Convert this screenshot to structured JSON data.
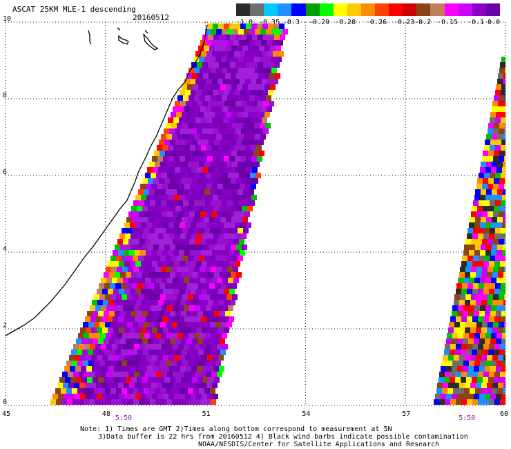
{
  "header": {
    "title": "ASCAT 25KM MLE-1 descending",
    "date": "20160512"
  },
  "colorbar": {
    "labels": [
      "-1.0",
      "-0.35",
      "-0.3",
      "-0.29",
      "-0.28",
      "-0.26",
      "-0.23",
      "-0.2",
      "-0.15",
      "-0.1",
      "0.0"
    ],
    "colors": [
      "#2b2b2b",
      "#6e6e6e",
      "#00c8ff",
      "#1e90ff",
      "#0000ff",
      "#00a000",
      "#00ff00",
      "#ffff00",
      "#ffc800",
      "#ff8c00",
      "#ff4000",
      "#ff0000",
      "#d00000",
      "#8b4513",
      "#c08060",
      "#ff00ff",
      "#cc00ff",
      "#8a00c8",
      "#6a00a8"
    ]
  },
  "chart_data": {
    "type": "heatmap",
    "title": "ASCAT 25KM MLE-1 descending 20160512",
    "xlabel": "",
    "ylabel": "",
    "xlim": [
      45,
      60
    ],
    "ylim": [
      0,
      10
    ],
    "x_ticks": [
      "45",
      "48",
      "51",
      "54",
      "57",
      "60"
    ],
    "y_ticks": [
      "0",
      "2",
      "4",
      "6",
      "8",
      "10"
    ],
    "grid": true,
    "swaths": [
      {
        "name": "swath-west",
        "time": "5:50",
        "time_x": 48.5
      },
      {
        "name": "swath-east",
        "time": "5:50",
        "time_x": 58.8
      }
    ]
  },
  "footer": {
    "note_line1": "Note: 1) Times are GMT 2)Times along bottom correspond to measurement at 5N",
    "note_line2": "3)Data buffer is 22 hrs from 20160512 4) Black wind barbs indicate possible contamination",
    "note_line3": "NOAA/NESDIS/Center for Satellite Applications and Research"
  }
}
